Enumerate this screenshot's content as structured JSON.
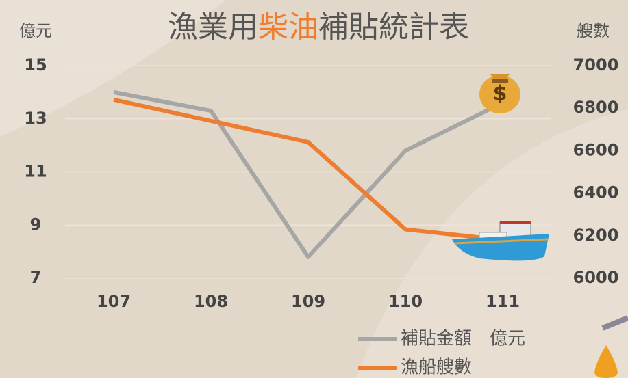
{
  "chart_data": {
    "type": "line",
    "title_parts": [
      "漁業用",
      "柴油",
      "補貼統計表"
    ],
    "title_colors": [
      "#555555",
      "#ed7d31",
      "#555555"
    ],
    "y_label": "億元",
    "y2_label": "艘數",
    "categories": [
      "107",
      "108",
      "109",
      "110",
      "111"
    ],
    "series": [
      {
        "name": "補貼金額　億元",
        "color": "#a6a6a6",
        "values": [
          14.0,
          13.3,
          7.8,
          11.8,
          13.6
        ]
      },
      {
        "name": "漁船艘數",
        "color": "#ed7d31",
        "axis": "y2",
        "values": [
          6840,
          6740,
          6640,
          6230,
          6180
        ]
      }
    ],
    "ylim": [
      7,
      15
    ],
    "yticks": [
      7,
      9,
      11,
      13,
      15
    ],
    "y2lim": [
      6000,
      7000
    ],
    "y2ticks": [
      6000,
      6200,
      6400,
      6600,
      6800,
      7000
    ],
    "grid": true
  }
}
